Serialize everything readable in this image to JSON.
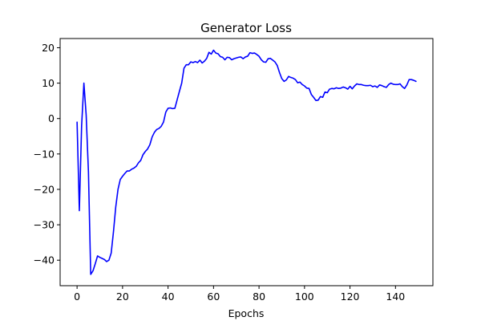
{
  "chart_data": {
    "type": "line",
    "title": "Generator Loss",
    "xlabel": "Epochs",
    "ylabel": "",
    "xlim": [
      -7.45,
      156.45
    ],
    "ylim": [
      -47.2,
      22.6
    ],
    "xticks": [
      0,
      20,
      40,
      60,
      80,
      100,
      120,
      140
    ],
    "yticks": [
      -40,
      -30,
      -20,
      -10,
      0,
      10,
      20
    ],
    "grid": false,
    "legend": "none",
    "series": [
      {
        "color": "#0000ff",
        "x": [
          0,
          1,
          2,
          3,
          4,
          5,
          6,
          7,
          8,
          9,
          10,
          11,
          12,
          13,
          14,
          15,
          16,
          17,
          18,
          19,
          20,
          21,
          22,
          23,
          24,
          25,
          26,
          27,
          28,
          29,
          30,
          31,
          32,
          33,
          34,
          35,
          36,
          37,
          38,
          39,
          40,
          41,
          42,
          43,
          44,
          45,
          46,
          47,
          48,
          49,
          50,
          51,
          52,
          53,
          54,
          55,
          56,
          57,
          58,
          59,
          60,
          61,
          62,
          63,
          64,
          65,
          66,
          67,
          68,
          69,
          70,
          71,
          72,
          73,
          74,
          75,
          76,
          77,
          78,
          79,
          80,
          81,
          82,
          83,
          84,
          85,
          86,
          87,
          88,
          89,
          90,
          91,
          92,
          93,
          94,
          95,
          96,
          97,
          98,
          99,
          100,
          101,
          102,
          103,
          104,
          105,
          106,
          107,
          108,
          109,
          110,
          111,
          112,
          113,
          114,
          115,
          116,
          117,
          118,
          119,
          120,
          121,
          122,
          123,
          124,
          125,
          126,
          127,
          128,
          129,
          130,
          131,
          132,
          133,
          134,
          135,
          136,
          137,
          138,
          139,
          140,
          141,
          142,
          143,
          144,
          145,
          146,
          147,
          148,
          149
        ],
        "y": [
          -1,
          -26,
          -2,
          10,
          1,
          -15,
          -44,
          -43,
          -41,
          -38.8,
          -39.2,
          -39.5,
          -39.8,
          -40.4,
          -40,
          -38,
          -32,
          -25,
          -20,
          -17.2,
          -16.3,
          -15.5,
          -14.8,
          -14.8,
          -14.3,
          -14,
          -13.5,
          -12.5,
          -11.8,
          -10.2,
          -9.3,
          -8.6,
          -7.4,
          -5.2,
          -3.9,
          -3.1,
          -2.8,
          -2.2,
          -1,
          1.8,
          2.9,
          3,
          2.8,
          2.9,
          5.3,
          7.7,
          10,
          14.2,
          15.2,
          15.2,
          16,
          15.8,
          16.1,
          15.8,
          16.5,
          15.7,
          16.2,
          17,
          18.7,
          18.2,
          19.3,
          18.5,
          18.3,
          17.5,
          17.3,
          16.6,
          17.3,
          17.2,
          16.6,
          16.9,
          17.1,
          17.3,
          17.4,
          16.9,
          17.4,
          17.6,
          18.6,
          18.4,
          18.5,
          18.1,
          17.6,
          16.6,
          16,
          15.9,
          16.9,
          17,
          16.5,
          16,
          15,
          13,
          11.3,
          10.5,
          10.9,
          11.9,
          11.6,
          11.4,
          11,
          10.1,
          10.3,
          9.6,
          9.2,
          8.6,
          8.5,
          6.8,
          6,
          5.1,
          5.2,
          6.2,
          6,
          7.5,
          7.3,
          8.3,
          8.5,
          8.4,
          8.7,
          8.5,
          8.6,
          8.9,
          8.7,
          8.3,
          9.1,
          8.4,
          9.2,
          9.8,
          9.6,
          9.6,
          9.4,
          9.3,
          9.3,
          9.4,
          9,
          9.2,
          8.8,
          9.5,
          9.3,
          9,
          8.8,
          9.6,
          10,
          9.7,
          9.6,
          9.6,
          9.8,
          9,
          8.5,
          9.5,
          11,
          11,
          10.8,
          10.5
        ]
      }
    ]
  }
}
